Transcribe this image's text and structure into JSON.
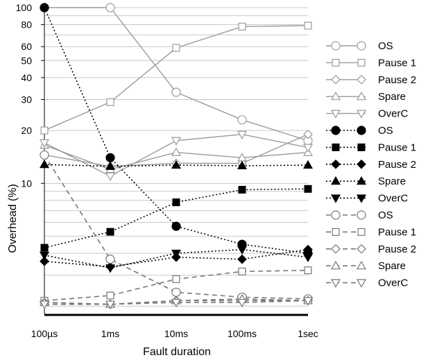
{
  "chart_data": {
    "type": "line",
    "xlabel": "Fault duration",
    "ylabel": "Overhead (%)",
    "categories": [
      "100µs",
      "1ms",
      "10ms",
      "100ms",
      "1sec"
    ],
    "y_scale": "log",
    "ylim": [
      1.8,
      100
    ],
    "y_tick_labels": [
      "100",
      "80",
      "60",
      "50",
      "40",
      "30",
      "20",
      "10"
    ],
    "y_ticks": [
      100,
      80,
      60,
      50,
      40,
      30,
      20,
      10
    ],
    "grid": true,
    "legend_position": "right",
    "series": [
      {
        "name": "OS",
        "style": "solid",
        "marker": "circle",
        "filled": false,
        "color": "#9a9a9a",
        "values": [
          100,
          100,
          33,
          23,
          17.5
        ]
      },
      {
        "name": "Pause 1",
        "style": "solid",
        "marker": "square",
        "filled": false,
        "color": "#9a9a9a",
        "values": [
          20,
          29,
          59,
          78,
          79
        ]
      },
      {
        "name": "Pause 2",
        "style": "solid",
        "marker": "diamond",
        "filled": false,
        "color": "#9a9a9a",
        "values": [
          14.5,
          12.5,
          13,
          13,
          19
        ]
      },
      {
        "name": "Spare",
        "style": "solid",
        "marker": "triangle",
        "filled": false,
        "color": "#9a9a9a",
        "values": [
          16.5,
          12,
          15,
          14,
          15
        ]
      },
      {
        "name": "OverC",
        "style": "solid",
        "marker": "tri-down",
        "filled": false,
        "color": "#9a9a9a",
        "values": [
          17,
          11,
          17.5,
          19,
          16
        ]
      },
      {
        "name": "OS",
        "style": "dotted",
        "marker": "circle",
        "filled": true,
        "color": "#000000",
        "values": [
          100,
          14,
          5.7,
          4.5,
          4.0
        ]
      },
      {
        "name": "Pause 1",
        "style": "dotted",
        "marker": "square",
        "filled": true,
        "color": "#000000",
        "values": [
          4.3,
          5.3,
          7.8,
          9.2,
          9.3
        ]
      },
      {
        "name": "Pause 2",
        "style": "dotted",
        "marker": "diamond",
        "filled": true,
        "color": "#000000",
        "values": [
          3.6,
          3.35,
          3.8,
          3.7,
          4.2
        ]
      },
      {
        "name": "Spare",
        "style": "dotted",
        "marker": "triangle",
        "filled": true,
        "color": "#000000",
        "values": [
          12.8,
          12.5,
          12.7,
          12.6,
          12.7
        ]
      },
      {
        "name": "OverC",
        "style": "dotted",
        "marker": "tri-down",
        "filled": true,
        "color": "#000000",
        "values": [
          3.9,
          3.3,
          4.0,
          4.2,
          3.8
        ]
      },
      {
        "name": "OS",
        "style": "dashed",
        "marker": "circle",
        "filled": false,
        "color": "#777777",
        "values": [
          14.5,
          3.7,
          2.4,
          2.25,
          2.2
        ]
      },
      {
        "name": "Pause 1",
        "style": "dashed",
        "marker": "square",
        "filled": false,
        "color": "#777777",
        "values": [
          2.15,
          2.3,
          2.85,
          3.15,
          3.2
        ]
      },
      {
        "name": "Pause 2",
        "style": "dashed",
        "marker": "diamond",
        "filled": false,
        "color": "#777777",
        "values": [
          2.1,
          2.05,
          2.15,
          2.15,
          2.15
        ]
      },
      {
        "name": "Spare",
        "style": "dashed",
        "marker": "triangle",
        "filled": false,
        "color": "#777777",
        "values": [
          2.1,
          2.05,
          2.15,
          2.2,
          2.15
        ]
      },
      {
        "name": "OverC",
        "style": "dashed",
        "marker": "tri-down",
        "filled": false,
        "color": "#777777",
        "values": [
          2.05,
          2.05,
          2.1,
          2.1,
          2.15
        ]
      }
    ]
  }
}
